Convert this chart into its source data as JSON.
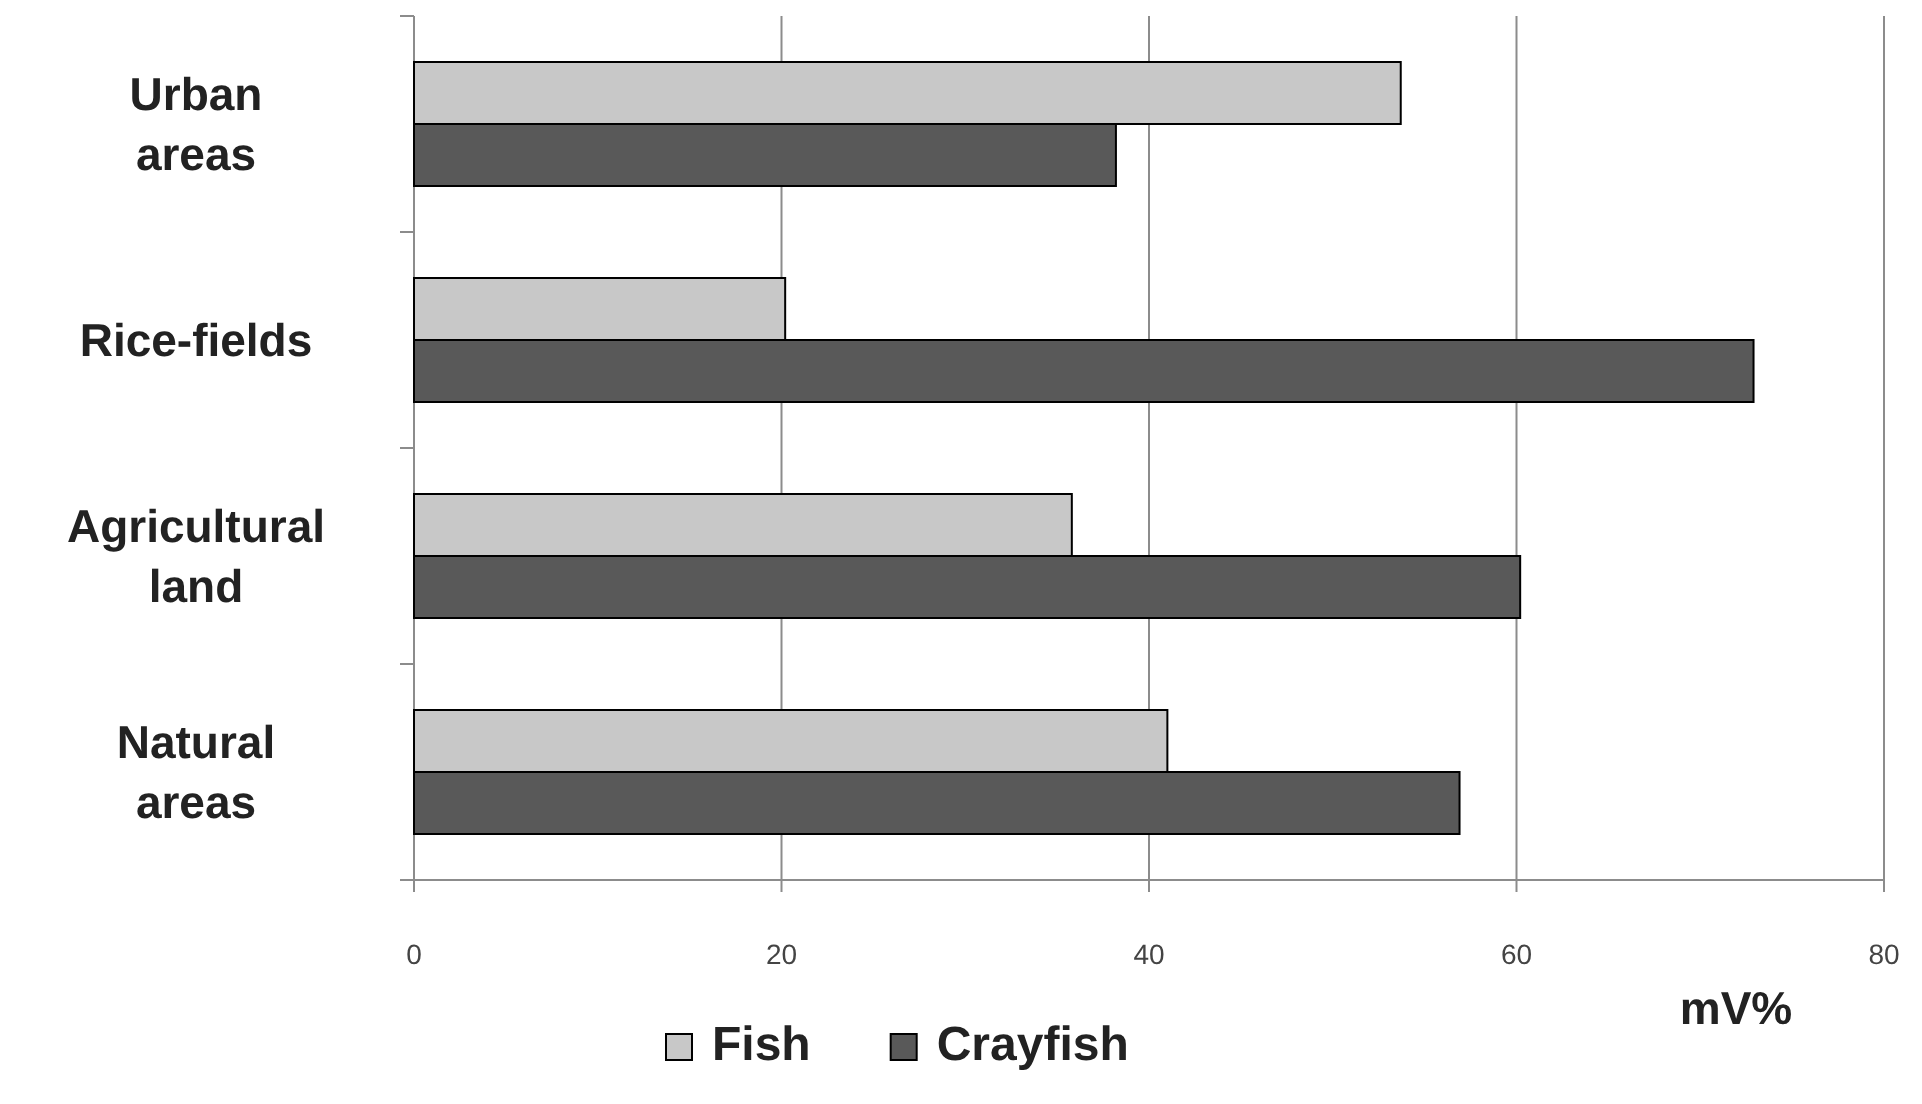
{
  "chart_data": {
    "type": "bar",
    "orientation": "horizontal",
    "categories": [
      "Urban areas",
      "Rice-fields",
      "Agricultural land",
      "Natural areas"
    ],
    "series": [
      {
        "name": "Fish",
        "color": "#c8c8c8",
        "values": [
          53.7,
          20.2,
          35.8,
          41.0
        ]
      },
      {
        "name": "Crayfish",
        "color": "#595959",
        "values": [
          38.2,
          72.9,
          60.2,
          56.9
        ]
      }
    ],
    "xlim": [
      0,
      80
    ],
    "xticks": [
      0,
      20,
      40,
      60,
      80
    ],
    "xlabel": "mV%",
    "grid": "x",
    "legend": "bottom"
  }
}
